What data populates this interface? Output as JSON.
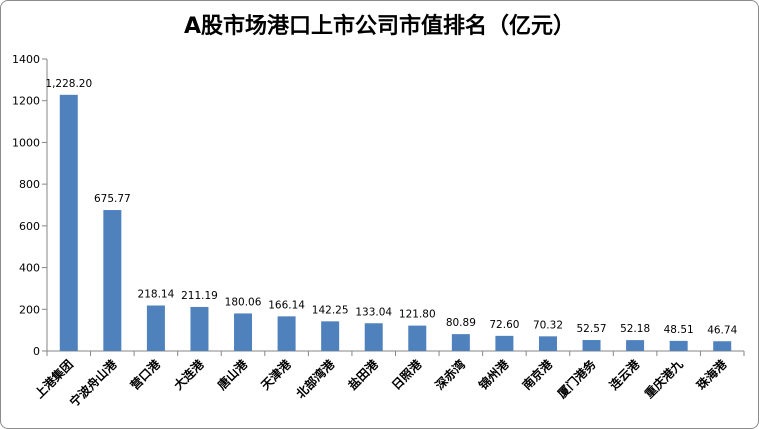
{
  "chart_data": {
    "type": "bar",
    "title": "A股市场港口上市公司市值排名（亿元）",
    "xlabel": "",
    "ylabel": "",
    "ylim": [
      0,
      1400
    ],
    "yticks": [
      0,
      200,
      400,
      600,
      800,
      1000,
      1200,
      1400
    ],
    "grid": false,
    "legend": "none",
    "bar_color": "#4f81bd",
    "categories": [
      "上港集团",
      "宁波舟山港",
      "营口港",
      "大连港",
      "唐山港",
      "天津港",
      "北部湾港",
      "盐田港",
      "日照港",
      "深赤湾",
      "锦州港",
      "南京港",
      "厦门港务",
      "连云港",
      "重庆港九",
      "珠海港"
    ],
    "values": [
      1228.2,
      675.77,
      218.14,
      211.19,
      180.06,
      166.14,
      142.25,
      133.04,
      121.8,
      80.89,
      72.6,
      70.32,
      52.57,
      52.18,
      48.51,
      46.74
    ],
    "data_labels": [
      "1,228.20",
      "675.77",
      "218.14",
      "211.19",
      "180.06",
      "166.14",
      "142.25",
      "133.04",
      "121.80",
      "80.89",
      "72.60",
      "70.32",
      "52.57",
      "52.18",
      "48.51",
      "46.74"
    ]
  }
}
